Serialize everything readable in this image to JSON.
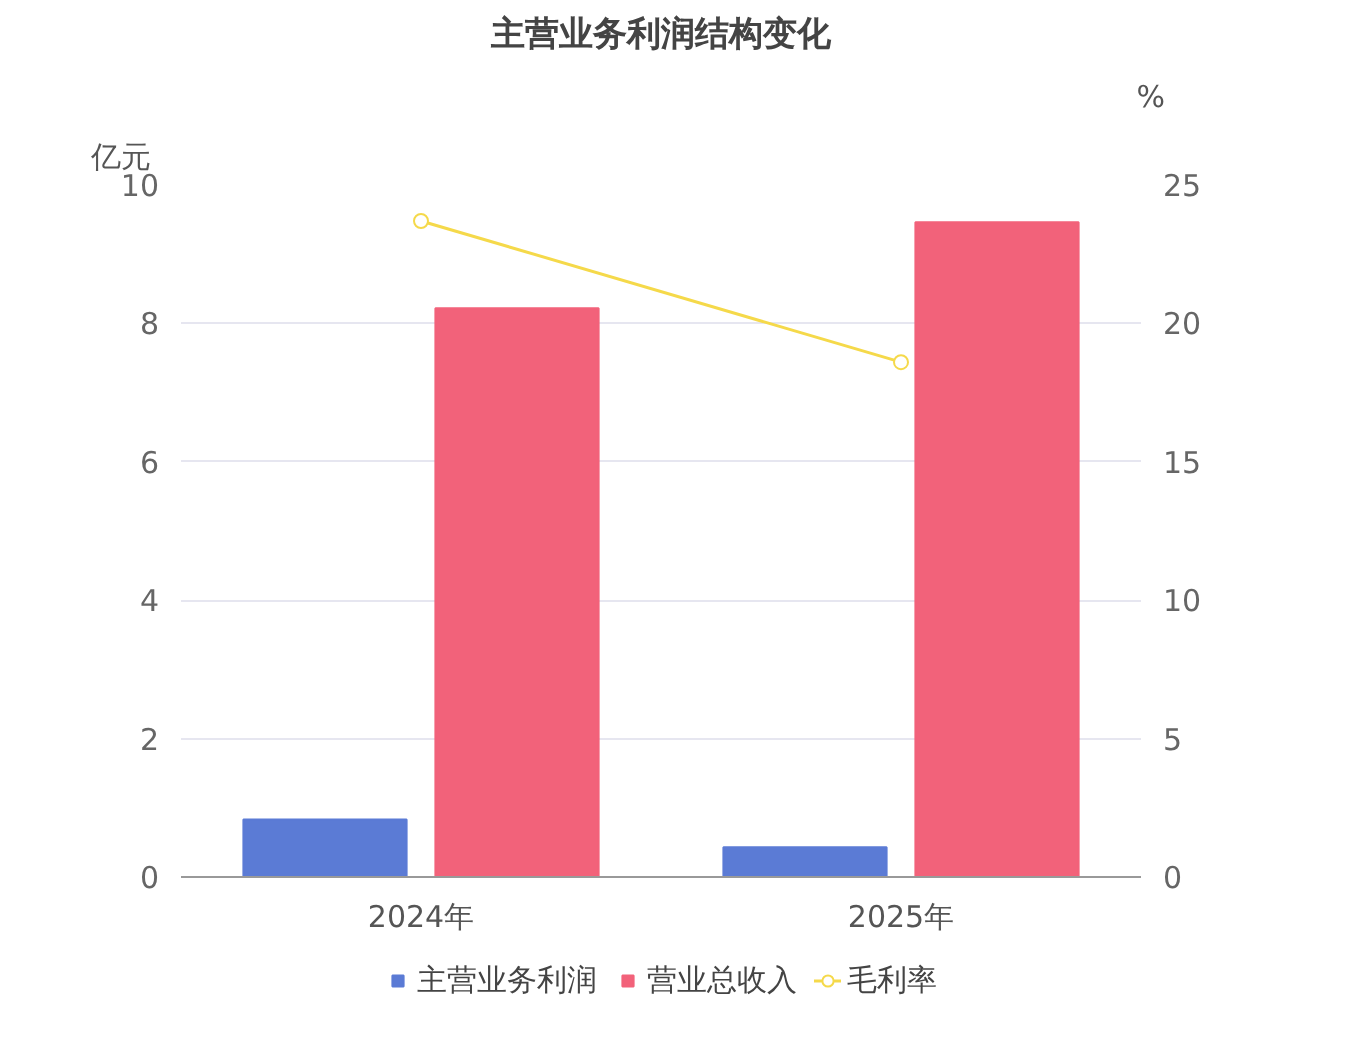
{
  "chart_data": {
    "type": "bar",
    "title": "主营业务利润结构变化",
    "categories": [
      "2024年",
      "2025年"
    ],
    "ylabel": "亿元",
    "y2label": "%",
    "series": [
      {
        "name": "主营业务利润",
        "color": "#5b7bd5",
        "values": [
          0.83,
          0.43
        ]
      },
      {
        "name": "营业总收入",
        "color": "#f2627a",
        "values": [
          8.22,
          9.46
        ]
      },
      {
        "name": "毛利率",
        "color": "#f5d94a",
        "type": "line",
        "axis": "y2",
        "marker": "circle",
        "values": [
          23.7,
          18.6
        ]
      }
    ],
    "ylim": [
      0,
      10
    ],
    "yticks": [
      0,
      2,
      4,
      6,
      8,
      10
    ],
    "y2lim": [
      0,
      25
    ],
    "y2ticks": [
      0,
      5,
      10,
      15,
      20,
      25
    ],
    "grid": "y",
    "legend": "bottom"
  }
}
